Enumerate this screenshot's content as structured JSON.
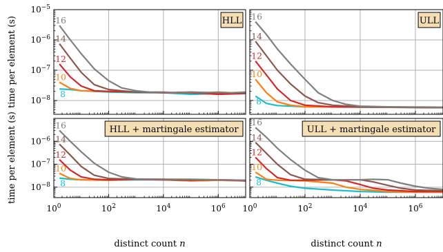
{
  "chart_data": {
    "type": "line",
    "layout": "2x2 grid, shared axes",
    "grid": true,
    "xscale": "log",
    "yscale": "log",
    "xlabel_bottom": "distinct count n",
    "ylabel_left": "time per element (s)",
    "x_ticks": [
      1,
      100,
      10000,
      1000000
    ],
    "x_tick_labels": [
      {
        "base": "10",
        "exp": "0"
      },
      {
        "base": "10",
        "exp": "2"
      },
      {
        "base": "10",
        "exp": "4"
      },
      {
        "base": "10",
        "exp": "6"
      }
    ],
    "y_ticks": [
      1e-08,
      1e-07,
      1e-06,
      1e-05
    ],
    "y_tick_labels": [
      {
        "base": "10",
        "exp": "−8"
      },
      {
        "base": "10",
        "exp": "−7"
      },
      {
        "base": "10",
        "exp": "−6"
      },
      {
        "base": "10",
        "exp": "−5"
      }
    ],
    "xlim": [
      1,
      10000000
    ],
    "ylim": [
      3.5e-09,
      1e-05
    ],
    "series_colors": {
      "8": "#17becf",
      "10": "#ff7f0e",
      "12": "#d62728",
      "14": "#8c564b",
      "16": "#7f7f7f"
    },
    "panels": [
      {
        "title": "HLL",
        "series": [
          {
            "name": "16",
            "points": [
              [
                1.6,
                3e-06
              ],
              [
                4,
                1e-06
              ],
              [
                10,
                3.5e-07
              ],
              [
                30,
                1.1e-07
              ],
              [
                100,
                4.5e-08
              ],
              [
                300,
                2.6e-08
              ],
              [
                1000,
                2.1e-08
              ],
              [
                3000,
                1.9e-08
              ],
              [
                10000,
                1.9e-08
              ],
              [
                30000,
                1.8e-08
              ],
              [
                100000,
                1.9e-08
              ],
              [
                300000,
                1.8e-08
              ],
              [
                1000000,
                1.9e-08
              ],
              [
                3000000,
                1.8e-08
              ],
              [
                10000000,
                1.9e-08
              ]
            ]
          },
          {
            "name": "14",
            "points": [
              [
                1.6,
                7.5e-07
              ],
              [
                4,
                2.5e-07
              ],
              [
                10,
                8.5e-08
              ],
              [
                30,
                3.3e-08
              ],
              [
                100,
                2.3e-08
              ],
              [
                300,
                2.1e-08
              ],
              [
                1000,
                1.9e-08
              ],
              [
                10000,
                1.8e-08
              ],
              [
                100000,
                1.9e-08
              ],
              [
                1000000,
                1.8e-08
              ],
              [
                10000000,
                1.8e-08
              ]
            ]
          },
          {
            "name": "12",
            "points": [
              [
                1.6,
                1.6e-07
              ],
              [
                4,
                6e-08
              ],
              [
                10,
                3e-08
              ],
              [
                30,
                2.1e-08
              ],
              [
                100,
                2e-08
              ],
              [
                1000,
                1.9e-08
              ],
              [
                10000,
                1.8e-08
              ],
              [
                100000,
                1.8e-08
              ],
              [
                1000000,
                1.6e-08
              ],
              [
                10000000,
                1.7e-08
              ]
            ]
          },
          {
            "name": "10",
            "points": [
              [
                1.6,
                4e-08
              ],
              [
                4,
                2.5e-08
              ],
              [
                10,
                2.1e-08
              ],
              [
                100,
                2e-08
              ],
              [
                1000,
                1.9e-08
              ],
              [
                10000,
                1.8e-08
              ],
              [
                100000,
                1.8e-08
              ],
              [
                1000000,
                1.7e-08
              ],
              [
                10000000,
                1.8e-08
              ]
            ]
          },
          {
            "name": "8",
            "points": [
              [
                1.6,
                2.4e-08
              ],
              [
                4,
                2.3e-08
              ],
              [
                10,
                2.1e-08
              ],
              [
                100,
                1.9e-08
              ],
              [
                1000,
                1.8e-08
              ],
              [
                10000,
                1.8e-08
              ],
              [
                100000,
                1.6e-08
              ],
              [
                1000000,
                1.7e-08
              ],
              [
                10000000,
                1.7e-08
              ]
            ]
          }
        ]
      },
      {
        "title": "ULL",
        "series": [
          {
            "name": "16",
            "points": [
              [
                1.6,
                4e-06
              ],
              [
                4,
                1.5e-06
              ],
              [
                10,
                5e-07
              ],
              [
                30,
                1.6e-07
              ],
              [
                100,
                5e-08
              ],
              [
                300,
                1.8e-08
              ],
              [
                1000,
                1e-08
              ],
              [
                3000,
                7.5e-09
              ],
              [
                10000,
                6.5e-09
              ],
              [
                100000,
                6.2e-09
              ],
              [
                10000000,
                6e-09
              ]
            ]
          },
          {
            "name": "14",
            "points": [
              [
                1.6,
                9e-07
              ],
              [
                4,
                3e-07
              ],
              [
                10,
                1e-07
              ],
              [
                30,
                3.5e-08
              ],
              [
                100,
                1.4e-08
              ],
              [
                300,
                8.5e-09
              ],
              [
                1000,
                7e-09
              ],
              [
                10000,
                6.2e-09
              ],
              [
                10000000,
                5.8e-09
              ]
            ]
          },
          {
            "name": "12",
            "points": [
              [
                1.6,
                2e-07
              ],
              [
                4,
                7e-08
              ],
              [
                10,
                2.4e-08
              ],
              [
                30,
                1e-08
              ],
              [
                100,
                7e-09
              ],
              [
                1000,
                6.2e-09
              ],
              [
                10000000,
                5.8e-09
              ]
            ]
          },
          {
            "name": "10",
            "points": [
              [
                1.6,
                5e-08
              ],
              [
                4,
                1.8e-08
              ],
              [
                10,
                9e-09
              ],
              [
                30,
                7e-09
              ],
              [
                100,
                6.2e-09
              ],
              [
                10000000,
                5.8e-09
              ]
            ]
          },
          {
            "name": "8",
            "points": [
              [
                1.6,
                1.4e-08
              ],
              [
                4,
                8e-09
              ],
              [
                10,
                6.8e-09
              ],
              [
                100,
                6.2e-09
              ],
              [
                10000000,
                5.8e-09
              ]
            ]
          }
        ]
      },
      {
        "title": "HLL + martingale estimator",
        "series": [
          {
            "name": "16",
            "points": [
              [
                1.6,
                3e-06
              ],
              [
                4,
                1e-06
              ],
              [
                10,
                3.5e-07
              ],
              [
                30,
                1.1e-07
              ],
              [
                100,
                4.5e-08
              ],
              [
                300,
                2.8e-08
              ],
              [
                1000,
                2.3e-08
              ],
              [
                10000,
                2.2e-08
              ],
              [
                100000,
                2.2e-08
              ],
              [
                1000000,
                2.1e-08
              ],
              [
                10000000,
                2e-08
              ]
            ]
          },
          {
            "name": "14",
            "points": [
              [
                1.6,
                7.5e-07
              ],
              [
                4,
                2.5e-07
              ],
              [
                10,
                8e-08
              ],
              [
                30,
                3.3e-08
              ],
              [
                100,
                2.4e-08
              ],
              [
                1000,
                2.2e-08
              ],
              [
                10000,
                2.2e-08
              ],
              [
                100000,
                2.1e-08
              ],
              [
                1000000,
                2.1e-08
              ],
              [
                10000000,
                2e-08
              ]
            ]
          },
          {
            "name": "12",
            "points": [
              [
                1.6,
                1.6e-07
              ],
              [
                4,
                5.5e-08
              ],
              [
                10,
                2.8e-08
              ],
              [
                30,
                2.2e-08
              ],
              [
                100,
                2.1e-08
              ],
              [
                1000,
                2.2e-08
              ],
              [
                10000,
                2.1e-08
              ],
              [
                100000,
                2e-08
              ],
              [
                1000000,
                2.1e-08
              ],
              [
                10000000,
                1.9e-08
              ]
            ]
          },
          {
            "name": "10",
            "points": [
              [
                1.6,
                4e-08
              ],
              [
                4,
                2.4e-08
              ],
              [
                10,
                2.1e-08
              ],
              [
                100,
                2e-08
              ],
              [
                1000,
                2.2e-08
              ],
              [
                10000,
                2.1e-08
              ],
              [
                100000,
                1.9e-08
              ],
              [
                1000000,
                2e-08
              ],
              [
                10000000,
                1.9e-08
              ]
            ]
          },
          {
            "name": "8",
            "points": [
              [
                1.6,
                2.5e-08
              ],
              [
                4,
                2.2e-08
              ],
              [
                10,
                2.1e-08
              ],
              [
                100,
                2e-08
              ],
              [
                1000,
                2.1e-08
              ],
              [
                10000,
                2.1e-08
              ],
              [
                100000,
                1.9e-08
              ],
              [
                1000000,
                2e-08
              ],
              [
                10000000,
                1.9e-08
              ]
            ]
          }
        ]
      },
      {
        "title": "ULL + martingale estimator",
        "series": [
          {
            "name": "16",
            "points": [
              [
                1.6,
                4e-06
              ],
              [
                4,
                1.5e-06
              ],
              [
                10,
                5e-07
              ],
              [
                30,
                1.6e-07
              ],
              [
                100,
                5.5e-08
              ],
              [
                300,
                2.6e-08
              ],
              [
                1000,
                2.1e-08
              ],
              [
                10000,
                2.1e-08
              ],
              [
                30000,
                2.2e-08
              ],
              [
                100000,
                2.1e-08
              ],
              [
                300000,
                1.5e-08
              ],
              [
                1000000,
                1.1e-08
              ],
              [
                3000000,
                9e-09
              ],
              [
                10000000,
                8e-09
              ]
            ]
          },
          {
            "name": "14",
            "points": [
              [
                1.6,
                9e-07
              ],
              [
                4,
                3e-07
              ],
              [
                10,
                1e-07
              ],
              [
                30,
                3.5e-08
              ],
              [
                100,
                2.2e-08
              ],
              [
                1000,
                2.1e-08
              ],
              [
                10000,
                2.1e-08
              ],
              [
                30000,
                1.7e-08
              ],
              [
                100000,
                1.2e-08
              ],
              [
                300000,
                9e-09
              ],
              [
                1000000,
                7.5e-09
              ],
              [
                10000000,
                7e-09
              ]
            ]
          },
          {
            "name": "12",
            "points": [
              [
                1.6,
                2e-07
              ],
              [
                4,
                6.5e-08
              ],
              [
                10,
                2.6e-08
              ],
              [
                30,
                2e-08
              ],
              [
                100,
                2e-08
              ],
              [
                1000,
                2.1e-08
              ],
              [
                3000,
                1.9e-08
              ],
              [
                10000,
                1.3e-08
              ],
              [
                30000,
                9e-09
              ],
              [
                100000,
                7.5e-09
              ],
              [
                1000000,
                6.5e-09
              ],
              [
                10000000,
                6.5e-09
              ]
            ]
          },
          {
            "name": "10",
            "points": [
              [
                1.6,
                4.5e-08
              ],
              [
                4,
                2.2e-08
              ],
              [
                10,
                2e-08
              ],
              [
                100,
                1.9e-08
              ],
              [
                1000,
                1.5e-08
              ],
              [
                3000,
                1e-08
              ],
              [
                10000,
                8e-09
              ],
              [
                100000,
                6.5e-09
              ],
              [
                1000000,
                6e-09
              ],
              [
                10000000,
                6e-09
              ]
            ]
          },
          {
            "name": "8",
            "points": [
              [
                1.6,
                2.8e-08
              ],
              [
                4,
                2e-08
              ],
              [
                10,
                1.5e-08
              ],
              [
                30,
                1.1e-08
              ],
              [
                100,
                9e-09
              ],
              [
                1000,
                7.5e-09
              ],
              [
                10000,
                6.5e-09
              ],
              [
                100000,
                6e-09
              ],
              [
                10000000,
                6e-09
              ]
            ]
          }
        ]
      }
    ]
  }
}
